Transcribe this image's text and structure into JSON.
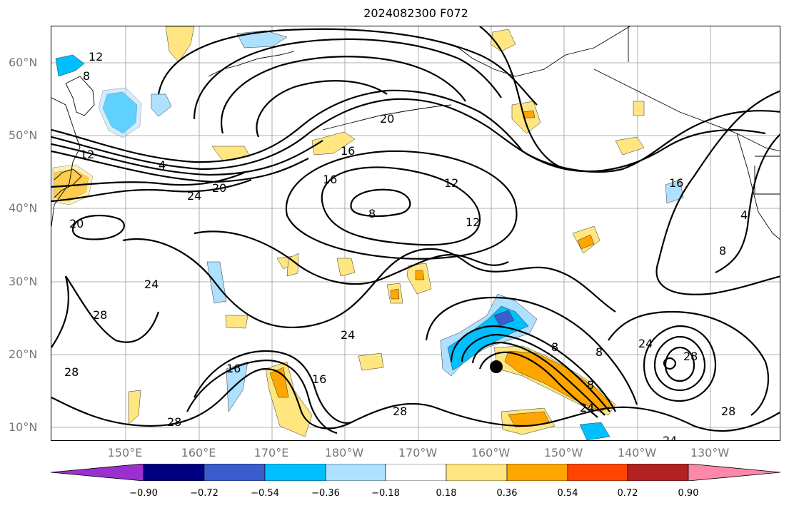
{
  "title": "2024082300 F072",
  "lat_labels": [
    "60°N",
    "50°N",
    "40°N",
    "30°N",
    "20°N",
    "10°N"
  ],
  "lon_labels": [
    "150°E",
    "160°E",
    "170°E",
    "180°W",
    "170°W",
    "160°W",
    "150°W",
    "140°W",
    "130°W"
  ],
  "colorbar": {
    "ticks": [
      "−0.90",
      "−0.72",
      "−0.54",
      "−0.36",
      "−0.18",
      "0.18",
      "0.36",
      "0.54",
      "0.72",
      "0.90"
    ],
    "colors": [
      "#9b30d0",
      "#000080",
      "#3a5ccc",
      "#00bfff",
      "#aee0ff",
      "#ffffff",
      "#ffe680",
      "#ffa500",
      "#ff4500",
      "#b22222",
      "#ff88aa"
    ]
  },
  "contour_labels": [
    "12",
    "8",
    "4",
    "12",
    "20",
    "16",
    "16",
    "12",
    "24",
    "20",
    "20",
    "8",
    "12",
    "16",
    "4",
    "8",
    "24",
    "28",
    "24",
    "16",
    "16",
    "28",
    "28",
    "28",
    "8",
    "8",
    "8",
    "24",
    "24",
    "28",
    "28",
    "24"
  ],
  "storm_marker": {
    "lon": -159.8,
    "lat": 18.2
  },
  "colors": {
    "fill_orange": "#ffa500",
    "fill_yellow": "#ffe680",
    "fill_cyan": "#00bfff",
    "fill_lightblue": "#aee0ff",
    "fill_blue": "#3a5ccc"
  }
}
